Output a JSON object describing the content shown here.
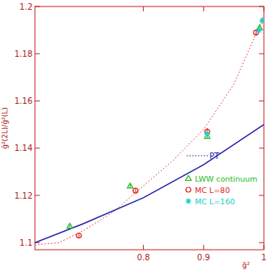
{
  "chart_data": {
    "type": "scatter",
    "x_label": "ḡ²",
    "y_label": "ḡ²(2L)/ḡ²(L)",
    "xlim": [
      0.62,
      1.0
    ],
    "ylim": [
      1.097,
      1.2
    ],
    "xticks": [
      0.8,
      0.9,
      1
    ],
    "yticks": [
      1.1,
      1.12,
      1.14,
      1.16,
      1.18,
      1.2
    ],
    "grid": false,
    "series": [
      {
        "type": "line",
        "color": "#dd3333",
        "line_style": "dotted",
        "x": [
          0.62,
          0.66,
          0.7,
          0.75,
          0.8,
          0.85,
          0.9,
          0.95,
          1.0
        ],
        "values": [
          1.099,
          1.1,
          1.105,
          1.113,
          1.124,
          1.135,
          1.148,
          1.167,
          1.196
        ]
      },
      {
        "name": "PT",
        "type": "line",
        "color": "#2222aa",
        "line_style": "solid",
        "x": [
          0.62,
          0.7,
          0.8,
          0.9,
          1.0
        ],
        "values": [
          1.1,
          1.108,
          1.119,
          1.133,
          1.15
        ]
      },
      {
        "name": "LWW continuum",
        "type": "scatter",
        "color": "#22bb22",
        "marker": "triangle",
        "x": [
          0.678,
          0.778,
          0.906,
          0.993
        ],
        "values": [
          1.107,
          1.124,
          1.145,
          1.191
        ],
        "errors": [
          0.0008,
          0.0008,
          0.001,
          0.0012
        ]
      },
      {
        "name": "MC L=80",
        "type": "scatter",
        "color": "#dd2222",
        "marker": "circle",
        "x": [
          0.693,
          0.787,
          0.906,
          0.987
        ],
        "values": [
          1.103,
          1.122,
          1.147,
          1.189
        ],
        "errors": [
          0.001,
          0.001,
          0.0015,
          0.0012
        ]
      },
      {
        "name": "MC L=160",
        "type": "scatter",
        "color": "#22cccc",
        "marker": "star",
        "x": [
          0.906,
          0.992,
          0.997
        ],
        "values": [
          1.146,
          1.19,
          1.194
        ],
        "errors": [
          0.0012,
          0.0012,
          0.0015
        ]
      }
    ]
  }
}
